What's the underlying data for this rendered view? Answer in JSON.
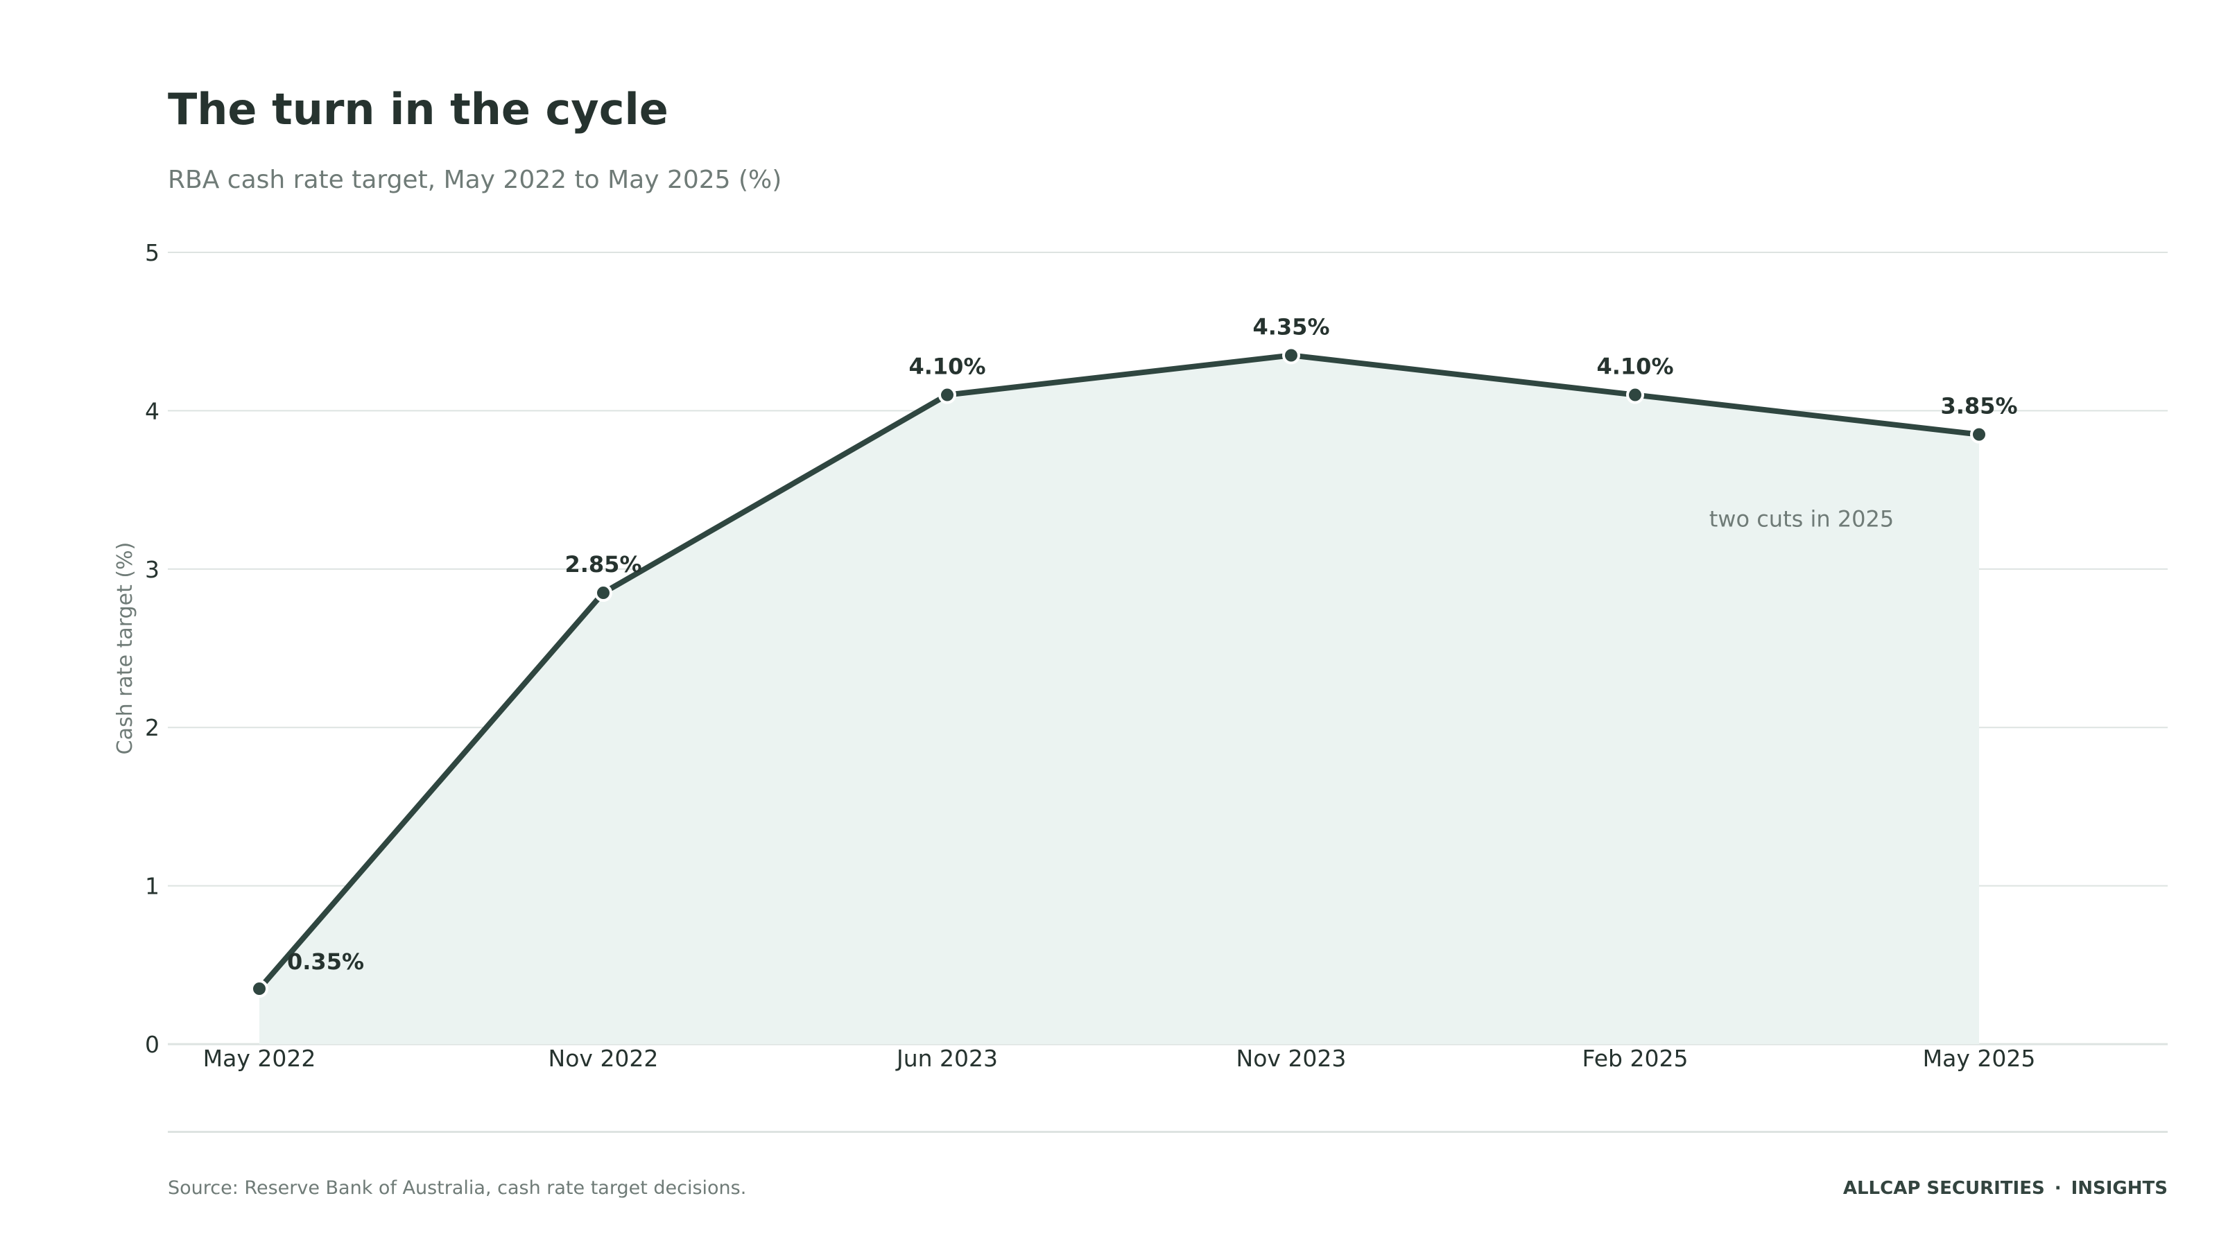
{
  "header": {
    "title": "The turn in the cycle",
    "subtitle": "RBA cash rate target, May 2022 to May 2025 (%)"
  },
  "chart_data": {
    "type": "area",
    "title": "The turn in the cycle",
    "subtitle": "RBA cash rate target, May 2022 to May 2025 (%)",
    "xlabel": "",
    "ylabel": "Cash rate target (%)",
    "categories": [
      "May 2022",
      "Nov 2022",
      "Jun 2023",
      "Nov 2023",
      "Feb 2025",
      "May 2025"
    ],
    "values": [
      0.35,
      2.85,
      4.1,
      4.35,
      4.1,
      3.85
    ],
    "data_labels": [
      "0.35%",
      "2.85%",
      "4.10%",
      "4.35%",
      "4.10%",
      "3.85%"
    ],
    "ylim": [
      0,
      5
    ],
    "yticks": [
      0,
      1,
      2,
      3,
      4,
      5
    ],
    "ytick_labels": [
      "0",
      "1",
      "2",
      "3",
      "4",
      "5"
    ],
    "grid": true,
    "legend": "none",
    "annotations": [
      {
        "text": "two cuts in 2025",
        "x": "Feb 2025",
        "y": 3.3
      }
    ],
    "colors": {
      "line": "#2f4640",
      "area_fill": "#ebf3f1",
      "grid": "#dde3e1",
      "text": "#26332f",
      "muted": "#6f7b77"
    }
  },
  "footer": {
    "source": "Source: Reserve Bank of Australia, cash rate target decisions.",
    "brand": "ALLCAP SECURITIES",
    "separator": "·",
    "section": "INSIGHTS"
  }
}
